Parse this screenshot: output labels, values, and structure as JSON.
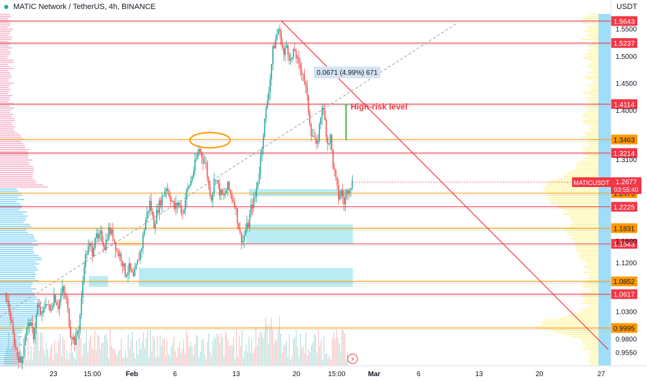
{
  "header": {
    "title": "MATIC Network / TetherUS, 4h, BINANCE",
    "unit": "USDT"
  },
  "chart_data": {
    "type": "candlestick",
    "symbol": "MATICUSDT",
    "interval": "4h",
    "exchange": "BINANCE",
    "ylim": [
      0.93,
      1.58
    ],
    "y_ticks": [
      0.955,
      0.98,
      1.03,
      1.12,
      1.16,
      1.31,
      1.4,
      1.45,
      1.5,
      1.55
    ],
    "x_ticks": [
      "23",
      "15:00",
      "Feb",
      "6",
      "13",
      "20",
      "15:00",
      "Mar",
      "6",
      "13",
      "20",
      "27"
    ],
    "current_price": {
      "label": "MATICUSDT",
      "value": "1.2677",
      "countdown": "03:55:40"
    },
    "price_path": [
      [
        0,
        1.065
      ],
      [
        6,
        1.035
      ],
      [
        12,
        0.985
      ],
      [
        18,
        0.95
      ],
      [
        24,
        0.935
      ],
      [
        30,
        0.99
      ],
      [
        36,
        1.01
      ],
      [
        42,
        0.985
      ],
      [
        48,
        1.04
      ],
      [
        54,
        1.02
      ],
      [
        60,
        1.05
      ],
      [
        66,
        1.03
      ],
      [
        72,
        1.06
      ],
      [
        78,
        1.04
      ],
      [
        84,
        1.07
      ],
      [
        90,
        1.05
      ],
      [
        96,
        0.99
      ],
      [
        102,
        0.975
      ],
      [
        108,
        1.0
      ],
      [
        112,
        1.05
      ],
      [
        116,
        1.12
      ],
      [
        120,
        1.14
      ],
      [
        124,
        1.15
      ],
      [
        128,
        1.14
      ],
      [
        132,
        1.17
      ],
      [
        136,
        1.16
      ],
      [
        140,
        1.17
      ],
      [
        146,
        1.15
      ],
      [
        152,
        1.18
      ],
      [
        158,
        1.17
      ],
      [
        164,
        1.14
      ],
      [
        170,
        1.13
      ],
      [
        176,
        1.1
      ],
      [
        182,
        1.11
      ],
      [
        188,
        1.09
      ],
      [
        194,
        1.12
      ],
      [
        200,
        1.15
      ],
      [
        206,
        1.2
      ],
      [
        212,
        1.23
      ],
      [
        218,
        1.19
      ],
      [
        224,
        1.22
      ],
      [
        230,
        1.24
      ],
      [
        236,
        1.26
      ],
      [
        242,
        1.24
      ],
      [
        248,
        1.22
      ],
      [
        254,
        1.23
      ],
      [
        260,
        1.21
      ],
      [
        266,
        1.25
      ],
      [
        272,
        1.27
      ],
      [
        278,
        1.3
      ],
      [
        284,
        1.33
      ],
      [
        290,
        1.31
      ],
      [
        294,
        1.3
      ],
      [
        298,
        1.26
      ],
      [
        302,
        1.24
      ],
      [
        308,
        1.28
      ],
      [
        314,
        1.25
      ],
      [
        320,
        1.24
      ],
      [
        326,
        1.26
      ],
      [
        332,
        1.24
      ],
      [
        336,
        1.23
      ],
      [
        340,
        1.2
      ],
      [
        344,
        1.17
      ],
      [
        348,
        1.16
      ],
      [
        352,
        1.18
      ],
      [
        356,
        1.19
      ],
      [
        360,
        1.22
      ],
      [
        366,
        1.24
      ],
      [
        372,
        1.29
      ],
      [
        378,
        1.36
      ],
      [
        384,
        1.42
      ],
      [
        388,
        1.46
      ],
      [
        392,
        1.51
      ],
      [
        396,
        1.53
      ],
      [
        400,
        1.55
      ],
      [
        404,
        1.53
      ],
      [
        408,
        1.5
      ],
      [
        412,
        1.52
      ],
      [
        418,
        1.49
      ],
      [
        424,
        1.51
      ],
      [
        430,
        1.48
      ],
      [
        436,
        1.47
      ],
      [
        440,
        1.44
      ],
      [
        444,
        1.4
      ],
      [
        448,
        1.36
      ],
      [
        452,
        1.35
      ],
      [
        456,
        1.33
      ],
      [
        460,
        1.37
      ],
      [
        464,
        1.41
      ],
      [
        468,
        1.38
      ],
      [
        472,
        1.34
      ],
      [
        476,
        1.35
      ],
      [
        480,
        1.3
      ],
      [
        484,
        1.27
      ],
      [
        488,
        1.24
      ],
      [
        492,
        1.25
      ],
      [
        496,
        1.23
      ],
      [
        500,
        1.25
      ],
      [
        504,
        1.26
      ],
      [
        508,
        1.2677
      ]
    ],
    "horizontal_levels": [
      {
        "value": "1.5643",
        "color": "#f23645",
        "kind": "red"
      },
      {
        "value": "1.5237",
        "color": "#f23645",
        "kind": "red"
      },
      {
        "value": "1.4114",
        "color": "#f23645",
        "kind": "red"
      },
      {
        "value": "1.3463",
        "color": "#ff9800",
        "kind": "orange"
      },
      {
        "value": "1.3214",
        "color": "#f23645",
        "kind": "red"
      },
      {
        "value": "1.2475",
        "color": "#ff9800",
        "kind": "orange"
      },
      {
        "value": "1.2225",
        "color": "#f23645",
        "kind": "red"
      },
      {
        "value": "1.1831",
        "color": "#ff9800",
        "kind": "orange"
      },
      {
        "value": "1.1543",
        "color": "#f23645",
        "kind": "red"
      },
      {
        "value": "1.0852",
        "color": "#ff9800",
        "kind": "orange"
      },
      {
        "value": "1.0617",
        "color": "#f23645",
        "kind": "red"
      },
      {
        "value": "0.9995",
        "color": "#ff9800",
        "kind": "orange"
      }
    ],
    "annotations": {
      "high_risk_label": "High-risk level",
      "measure_label": "0.0671 (4.99%) 671"
    },
    "colors": {
      "up": "#26a69a",
      "down": "#ef5350",
      "zone": "#80deea",
      "trendline": "#f23645",
      "profile_pink": "#f48fb1",
      "profile_blue": "#4fc3f7",
      "profile_yellow": "#fff59d"
    }
  }
}
